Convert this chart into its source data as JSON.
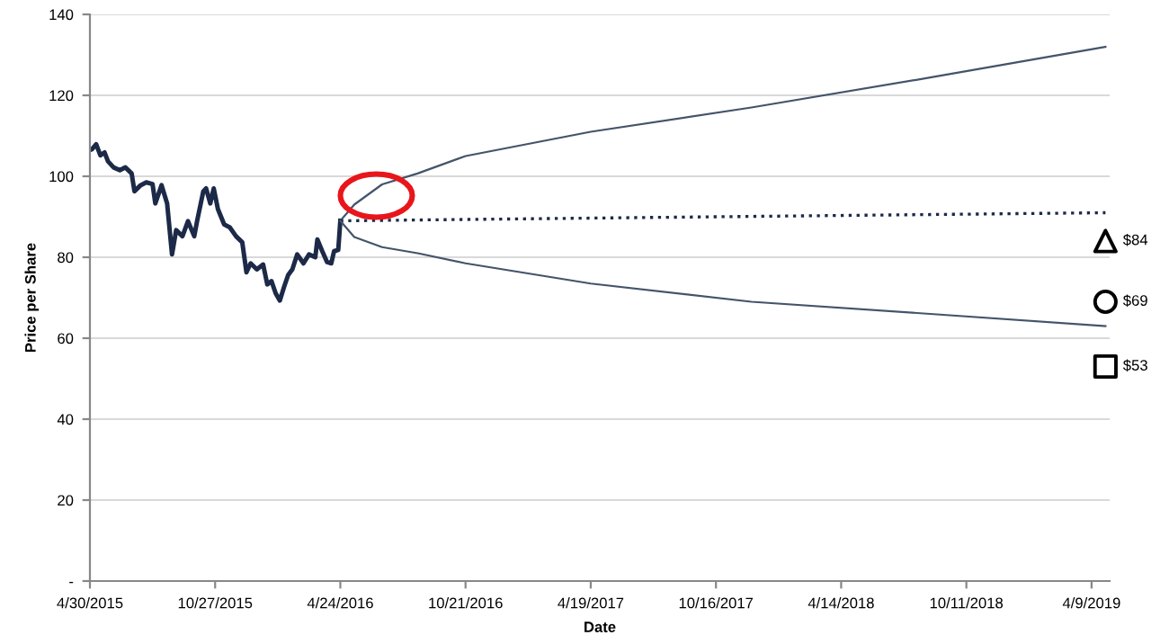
{
  "chart_data": {
    "type": "line",
    "xlabel": "Date",
    "ylabel": "Price per Share",
    "xlim": [
      "2015-04-30",
      "2019-05-05"
    ],
    "ylim": [
      0,
      140
    ],
    "xticks": [
      {
        "value": "2015-04-30",
        "label": "4/30/2015"
      },
      {
        "value": "2015-10-27",
        "label": "10/27/2015"
      },
      {
        "value": "2016-04-24",
        "label": "4/24/2016"
      },
      {
        "value": "2016-10-21",
        "label": "10/21/2016"
      },
      {
        "value": "2017-04-19",
        "label": "4/19/2017"
      },
      {
        "value": "2017-10-16",
        "label": "10/16/2017"
      },
      {
        "value": "2018-04-14",
        "label": "4/14/2018"
      },
      {
        "value": "2018-10-11",
        "label": "10/11/2018"
      },
      {
        "value": "2019-04-09",
        "label": "4/9/2019"
      }
    ],
    "yticks": [
      {
        "value": 0,
        "label": "-"
      },
      20,
      40,
      60,
      80,
      100,
      120,
      140
    ],
    "grid": "y",
    "legend": false,
    "series": [
      {
        "color": "#1c2a48",
        "line_style": "solid",
        "marker": "none",
        "x": [
          "2015-04-30",
          "2015-05-03",
          "2015-05-09",
          "2015-05-15",
          "2015-05-21",
          "2015-05-26",
          "2015-06-03",
          "2015-06-12",
          "2015-06-20",
          "2015-06-29",
          "2015-07-03",
          "2015-07-12",
          "2015-07-20",
          "2015-07-29",
          "2015-08-02",
          "2015-08-11",
          "2015-08-19",
          "2015-08-26",
          "2015-09-01",
          "2015-09-10",
          "2015-09-18",
          "2015-09-27",
          "2015-10-01",
          "2015-10-10",
          "2015-10-14",
          "2015-10-20",
          "2015-10-25",
          "2015-10-31",
          "2015-11-09",
          "2015-11-17",
          "2015-11-26",
          "2015-12-05",
          "2015-12-11",
          "2015-12-17",
          "2015-12-26",
          "2016-01-04",
          "2016-01-10",
          "2016-01-16",
          "2016-01-22",
          "2016-01-28",
          "2016-02-03",
          "2016-02-09",
          "2016-02-15",
          "2016-02-22",
          "2016-03-02",
          "2016-03-10",
          "2016-03-19",
          "2016-03-22",
          "2016-03-29",
          "2016-04-05",
          "2016-04-11",
          "2016-04-15",
          "2016-04-21",
          "2016-04-24"
        ],
        "values": [
          106.5,
          106.7,
          107.9,
          105.2,
          105.9,
          103.7,
          102.2,
          101.5,
          102.2,
          100.7,
          96.3,
          97.8,
          98.5,
          98.1,
          93.3,
          97.8,
          93.3,
          80.7,
          86.7,
          85.2,
          88.9,
          85.2,
          88.9,
          96.3,
          97.0,
          93.3,
          97.0,
          91.9,
          88.1,
          87.4,
          85.2,
          83.7,
          76.3,
          78.5,
          77.0,
          78.2,
          73.3,
          74.1,
          71.1,
          69.3,
          72.6,
          75.6,
          77.0,
          80.7,
          78.5,
          80.7,
          80.0,
          84.4,
          81.5,
          78.8,
          78.5,
          81.5,
          81.8,
          89.0
        ]
      },
      {
        "color": "#44546a",
        "line_style": "solid",
        "marker": "none",
        "x": [
          "2016-04-24",
          "2016-05-14",
          "2016-06-23",
          "2016-08-13",
          "2016-10-21",
          "2017-04-19",
          "2017-12-06",
          "2018-08-20",
          "2019-04-29"
        ],
        "values": [
          89,
          93,
          98,
          100.7,
          105,
          111,
          117,
          124.4,
          132
        ]
      },
      {
        "color": "#1c2a48",
        "line_style": "dotted",
        "marker": "none",
        "x": [
          "2016-04-24",
          "2017-10-16",
          "2019-04-29"
        ],
        "values": [
          89,
          90,
          91
        ]
      },
      {
        "color": "#44546a",
        "line_style": "solid",
        "marker": "none",
        "x": [
          "2016-04-24",
          "2016-05-14",
          "2016-06-23",
          "2016-08-13",
          "2016-10-21",
          "2017-04-19",
          "2017-12-06",
          "2018-08-20",
          "2019-04-29"
        ],
        "values": [
          89,
          85,
          82.5,
          81,
          78.5,
          73.5,
          69,
          66,
          63
        ]
      },
      {
        "type": "scatter",
        "color": "#000000",
        "marker": "triangle",
        "x": [
          "2019-04-29"
        ],
        "values": [
          84
        ],
        "value_labels": [
          "$84"
        ]
      },
      {
        "type": "scatter",
        "color": "#000000",
        "marker": "circle",
        "x": [
          "2019-04-29"
        ],
        "values": [
          69
        ],
        "value_labels": [
          "$69"
        ]
      },
      {
        "type": "scatter",
        "color": "#000000",
        "marker": "square",
        "x": [
          "2019-04-29"
        ],
        "values": [
          53
        ],
        "value_labels": [
          "$53"
        ]
      }
    ]
  }
}
